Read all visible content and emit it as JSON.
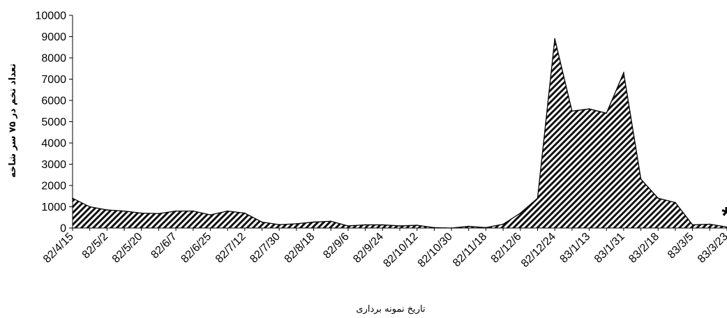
{
  "chart_data": {
    "type": "area",
    "xlabel": "تاریخ نمونه برداری",
    "ylabel": "تعداد تخم در ۷۵ سر شاخه",
    "ylim": [
      0,
      10000
    ],
    "yticks": [
      0,
      1000,
      2000,
      3000,
      4000,
      5000,
      6000,
      7000,
      8000,
      9000,
      10000
    ],
    "x_tick_labels": [
      "82/4/15",
      "82/5/2",
      "82/5/20",
      "82/6/7",
      "82/6/25",
      "82/7/12",
      "82/7/30",
      "82/8/18",
      "82/9/6",
      "82/9/24",
      "82/10/12",
      "82/10/30",
      "82/11/18",
      "82/12/6",
      "82/12/24",
      "83/1/13",
      "83/1/31",
      "83/2/18",
      "83/3/5",
      "83/3/23"
    ],
    "x_tick_every": 2,
    "grid": false,
    "legend": "none",
    "fill_pattern": "diagonal-hatch",
    "annotation": "*",
    "annotation_index": 38,
    "series": [
      {
        "values": [
          1400,
          1000,
          850,
          800,
          700,
          680,
          800,
          800,
          620,
          800,
          700,
          280,
          160,
          200,
          280,
          320,
          100,
          150,
          150,
          100,
          130,
          20,
          0,
          80,
          20,
          180,
          700,
          1400,
          8900,
          5500,
          5600,
          5400,
          7300,
          2300,
          1400,
          1200,
          150,
          180,
          50
        ]
      }
    ]
  }
}
